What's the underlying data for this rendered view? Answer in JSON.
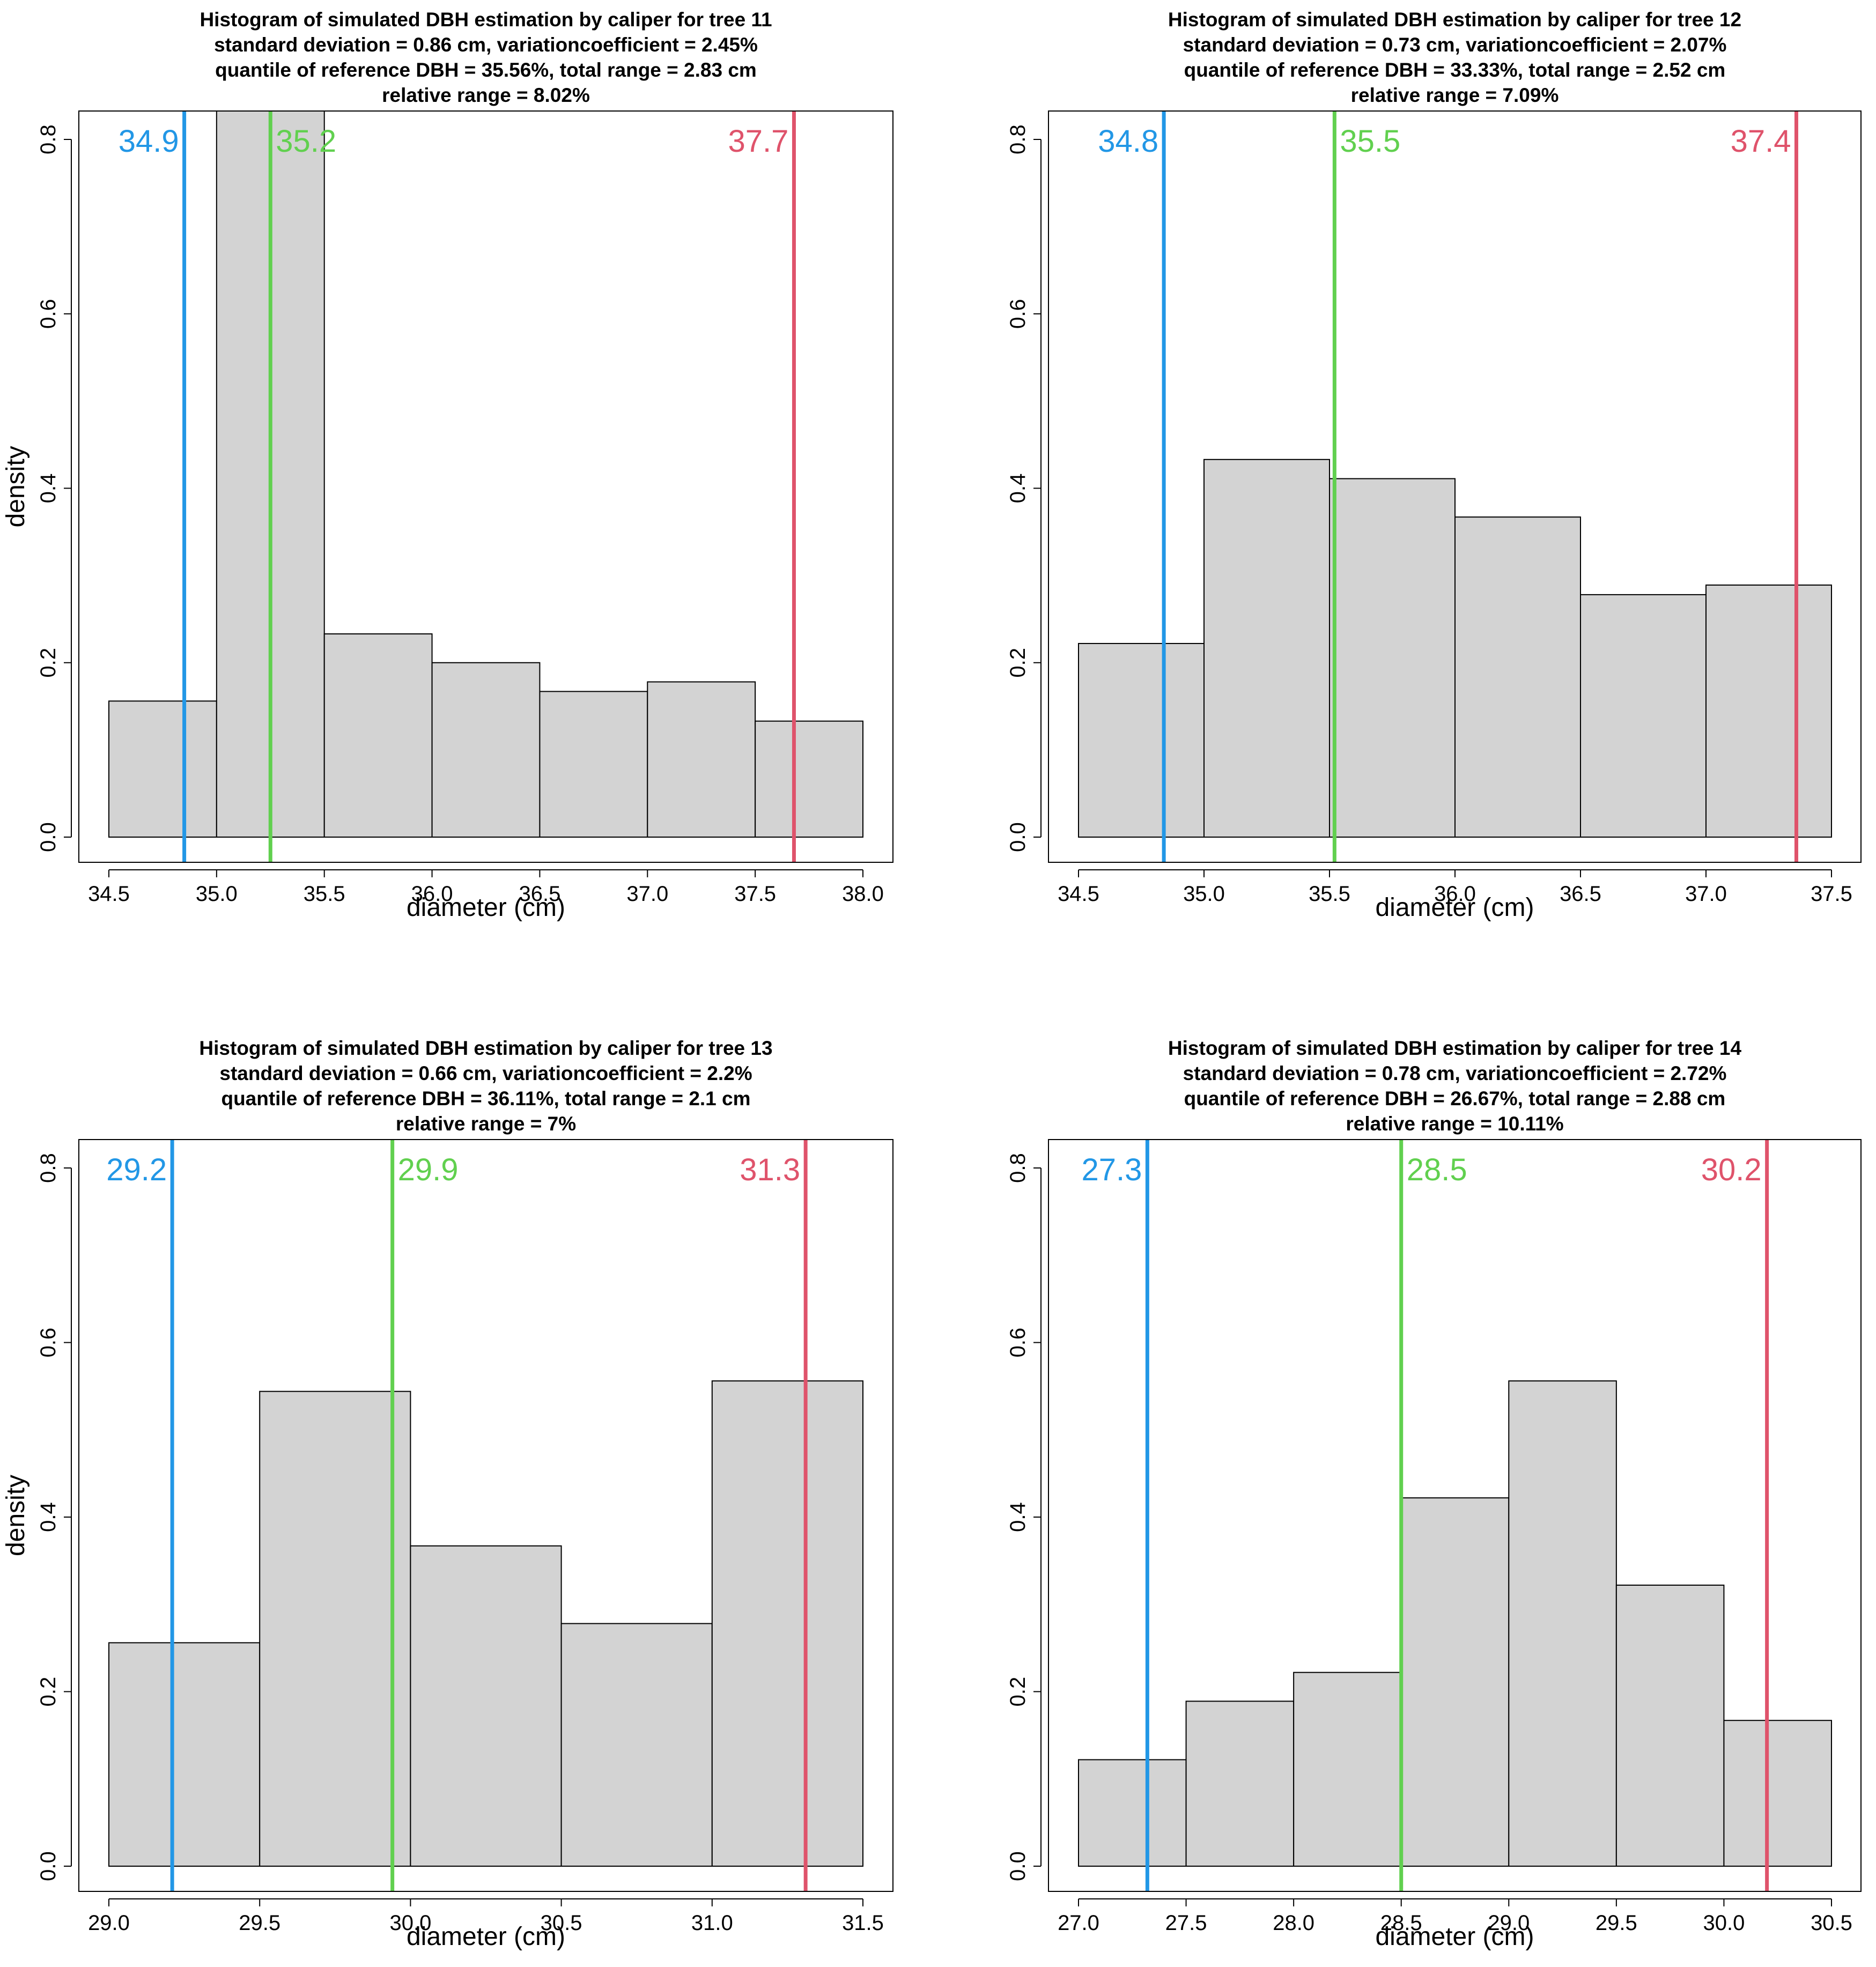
{
  "colors": {
    "bar_fill": "#d3d3d3",
    "bar_stroke": "#000000",
    "blue": "#2297e6",
    "green": "#61d04f",
    "red": "#df536b"
  },
  "chart_data": [
    {
      "type": "bar",
      "title": "Histogram of simulated DBH estimation by caliper for tree 11",
      "subtitle": [
        "standard deviation = 0.86 cm, variationcoefficient = 2.45%",
        "quantile of reference DBH = 35.56%, total range = 2.83 cm",
        "relative range = 8.02%"
      ],
      "xlabel": "diameter (cm)",
      "ylabel": "density",
      "xlim": [
        34.5,
        38.0
      ],
      "ylim": [
        0,
        0.8
      ],
      "x_ticks": [
        "34.5",
        "35.0",
        "35.5",
        "36.0",
        "36.5",
        "37.0",
        "37.5",
        "38.0"
      ],
      "y_ticks": [
        "0.0",
        "0.2",
        "0.4",
        "0.6",
        "0.8"
      ],
      "bin_edges": [
        34.5,
        35.0,
        35.5,
        36.0,
        36.5,
        37.0,
        37.5,
        38.0
      ],
      "values": [
        0.156,
        0.9,
        0.233,
        0.2,
        0.167,
        0.178,
        0.133
      ],
      "vlines": [
        {
          "x": 34.85,
          "label": "34.9",
          "color": "blue"
        },
        {
          "x": 35.25,
          "label": "35.2",
          "color": "green"
        },
        {
          "x": 37.68,
          "label": "37.7",
          "color": "red"
        }
      ],
      "grid": false
    },
    {
      "type": "bar",
      "title": "Histogram of simulated DBH estimation by caliper for tree 12",
      "subtitle": [
        "standard deviation = 0.73 cm, variationcoefficient = 2.07%",
        "quantile of reference DBH = 33.33%, total range = 2.52 cm",
        "relative range = 7.09%"
      ],
      "xlabel": "diameter (cm)",
      "ylabel": "",
      "xlim": [
        34.5,
        37.5
      ],
      "ylim": [
        0,
        0.8
      ],
      "x_ticks": [
        "34.5",
        "35.0",
        "35.5",
        "36.0",
        "36.5",
        "37.0",
        "37.5"
      ],
      "y_ticks": [
        "0.0",
        "0.2",
        "0.4",
        "0.6",
        "0.8"
      ],
      "bin_edges": [
        34.5,
        35.0,
        35.5,
        36.0,
        36.5,
        37.0,
        37.5
      ],
      "values": [
        0.222,
        0.433,
        0.411,
        0.367,
        0.278,
        0.289
      ],
      "vlines": [
        {
          "x": 34.84,
          "label": "34.8",
          "color": "blue"
        },
        {
          "x": 35.52,
          "label": "35.5",
          "color": "green"
        },
        {
          "x": 37.36,
          "label": "37.4",
          "color": "red"
        }
      ],
      "grid": false
    },
    {
      "type": "bar",
      "title": "Histogram of simulated DBH estimation by caliper for tree 13",
      "subtitle": [
        "standard deviation = 0.66 cm, variationcoefficient = 2.2%",
        "quantile of reference DBH = 36.11%, total range = 2.1 cm",
        "relative range = 7%"
      ],
      "xlabel": "diameter (cm)",
      "ylabel": "density",
      "xlim": [
        29.0,
        31.5
      ],
      "ylim": [
        0,
        0.8
      ],
      "x_ticks": [
        "29.0",
        "29.5",
        "30.0",
        "30.5",
        "31.0",
        "31.5"
      ],
      "y_ticks": [
        "0.0",
        "0.2",
        "0.4",
        "0.6",
        "0.8"
      ],
      "bin_edges": [
        29.0,
        29.5,
        30.0,
        30.5,
        31.0,
        31.5
      ],
      "values": [
        0.256,
        0.544,
        0.367,
        0.278,
        0.556
      ],
      "vlines": [
        {
          "x": 29.21,
          "label": "29.2",
          "color": "blue"
        },
        {
          "x": 29.94,
          "label": "29.9",
          "color": "green"
        },
        {
          "x": 31.31,
          "label": "31.3",
          "color": "red"
        }
      ],
      "grid": false
    },
    {
      "type": "bar",
      "title": "Histogram of simulated DBH estimation by caliper for tree 14",
      "subtitle": [
        "standard deviation = 0.78 cm, variationcoefficient = 2.72%",
        "quantile of reference DBH = 26.67%, total range = 2.88 cm",
        "relative range = 10.11%"
      ],
      "xlabel": "diameter (cm)",
      "ylabel": "",
      "xlim": [
        27.0,
        30.5
      ],
      "ylim": [
        0,
        0.8
      ],
      "x_ticks": [
        "27.0",
        "27.5",
        "28.0",
        "28.5",
        "29.0",
        "29.5",
        "30.0",
        "30.5"
      ],
      "y_ticks": [
        "0.0",
        "0.2",
        "0.4",
        "0.6",
        "0.8"
      ],
      "bin_edges": [
        27.0,
        27.5,
        28.0,
        28.5,
        29.0,
        29.5,
        30.0,
        30.5
      ],
      "values": [
        0.122,
        0.189,
        0.222,
        0.422,
        0.556,
        0.322,
        0.167
      ],
      "vlines": [
        {
          "x": 27.32,
          "label": "27.3",
          "color": "blue"
        },
        {
          "x": 28.5,
          "label": "28.5",
          "color": "green"
        },
        {
          "x": 30.2,
          "label": "30.2",
          "color": "red"
        }
      ],
      "grid": false
    }
  ]
}
